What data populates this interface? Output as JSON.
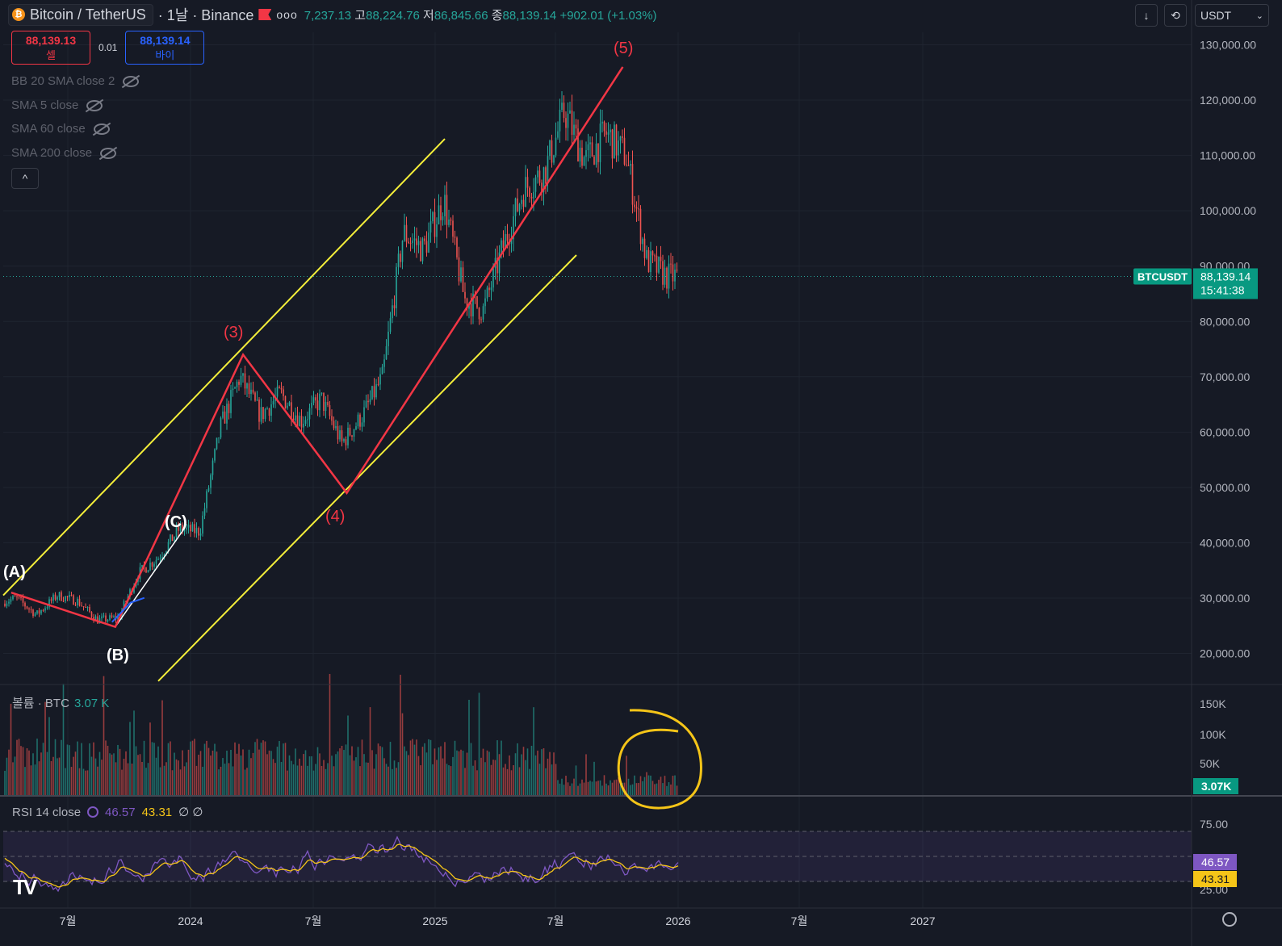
{
  "header": {
    "symbol": "Bitcoin / TetherUS",
    "timeframe": "· 1날 · Binance",
    "more_label": "ooo",
    "ohlc_open_partial": "7,237.13",
    "high_key": "고",
    "high": "88,224.76",
    "low_key": "저",
    "low": "86,845.66",
    "close_key": "종",
    "close": "88,139.14",
    "change": "+902.01 (+1.03%)"
  },
  "trade": {
    "sell_price": "88,139.13",
    "sell_label": "셀",
    "spread": "0.01",
    "buy_price": "88,139.14",
    "buy_label": "바이"
  },
  "indicators": [
    "BB 20 SMA close 2",
    "SMA 5 close",
    "SMA 60 close",
    "SMA 200 close"
  ],
  "collapse_label": "^",
  "toolbar": {
    "currency": "USDT",
    "download_icon": "arrow-down-icon",
    "refresh_icon": "swap-icon"
  },
  "price_axis": {
    "ticks": [
      "130,000.00",
      "120,000.00",
      "110,000.00",
      "100,000.00",
      "90,000.00",
      "80,000.00",
      "70,000.00",
      "60,000.00",
      "50,000.00",
      "40,000.00",
      "30,000.00",
      "20,000.00"
    ],
    "last_symbol": "BTCUSDT",
    "last_price": "88,139.14",
    "countdown": "15:41:38"
  },
  "time_axis": [
    "7월",
    "2024",
    "7월",
    "2025",
    "7월",
    "2026",
    "7월",
    "2027"
  ],
  "volume": {
    "label": "볼륨 · BTC",
    "value": "3.07 K",
    "ticks": [
      "150K",
      "100K",
      "50K"
    ],
    "last": "3.07K"
  },
  "rsi": {
    "label": "RSI 14 close",
    "rsi_value": "46.57",
    "ma_value": "43.31",
    "extra": "∅ ∅",
    "ticks": [
      "75.00",
      "25.00"
    ],
    "last_rsi": "46.57",
    "last_ma": "43.31"
  },
  "wave_labels": {
    "A": "(A)",
    "B": "(B)",
    "C": "(C)",
    "w3": "(3)",
    "w4": "(4)",
    "w5": "(5)"
  },
  "logo": "TV",
  "colors": {
    "up": "#26a69a",
    "down": "#ef5350",
    "wave": "#f23645",
    "channel": "#f5ef3a",
    "rsi": "#7e57c2",
    "rsi_ma": "#f5c518",
    "bg": "#161a25"
  },
  "chart_data": {
    "type": "candlestick",
    "title": "Bitcoin / TetherUS",
    "y_range": [
      15000,
      133000
    ],
    "elliott_waves": [
      {
        "label": "(A)",
        "date": "2023-04",
        "price": 31000
      },
      {
        "label": "(B)",
        "date": "2023-09",
        "price": 24800
      },
      {
        "label": "(C)",
        "date": "2023-12",
        "price": 42000
      },
      {
        "label": "(3)",
        "date": "2024-03",
        "price": 74000
      },
      {
        "label": "(4)",
        "date": "2024-08",
        "price": 49000
      },
      {
        "label": "(5)",
        "date": "2025-10",
        "price": 126000
      }
    ],
    "price_path": [
      {
        "date": "2023-03",
        "price": 29000
      },
      {
        "date": "2023-04",
        "price": 30000
      },
      {
        "date": "2023-05",
        "price": 27000
      },
      {
        "date": "2023-06",
        "price": 30500
      },
      {
        "date": "2023-07",
        "price": 29500
      },
      {
        "date": "2023-08",
        "price": 26000
      },
      {
        "date": "2023-09",
        "price": 26500
      },
      {
        "date": "2023-10",
        "price": 34500
      },
      {
        "date": "2023-11",
        "price": 37500
      },
      {
        "date": "2023-12",
        "price": 42500
      },
      {
        "date": "2024-01",
        "price": 42000
      },
      {
        "date": "2024-02",
        "price": 61000
      },
      {
        "date": "2024-03",
        "price": 70000
      },
      {
        "date": "2024-04",
        "price": 63000
      },
      {
        "date": "2024-05",
        "price": 67000
      },
      {
        "date": "2024-06",
        "price": 62000
      },
      {
        "date": "2024-07",
        "price": 66000
      },
      {
        "date": "2024-08",
        "price": 58000
      },
      {
        "date": "2024-09",
        "price": 63000
      },
      {
        "date": "2024-10",
        "price": 70000
      },
      {
        "date": "2024-11",
        "price": 96000
      },
      {
        "date": "2024-12",
        "price": 93000
      },
      {
        "date": "2025-01",
        "price": 102000
      },
      {
        "date": "2025-02",
        "price": 84000
      },
      {
        "date": "2025-03",
        "price": 82000
      },
      {
        "date": "2025-04",
        "price": 94000
      },
      {
        "date": "2025-05",
        "price": 104000
      },
      {
        "date": "2025-06",
        "price": 107000
      },
      {
        "date": "2025-07",
        "price": 118000
      },
      {
        "date": "2025-08",
        "price": 109000
      },
      {
        "date": "2025-09",
        "price": 114000
      },
      {
        "date": "2025-10",
        "price": 110000
      },
      {
        "date": "2025-11",
        "price": 91000
      },
      {
        "date": "2025-12",
        "price": 88139
      }
    ]
  }
}
